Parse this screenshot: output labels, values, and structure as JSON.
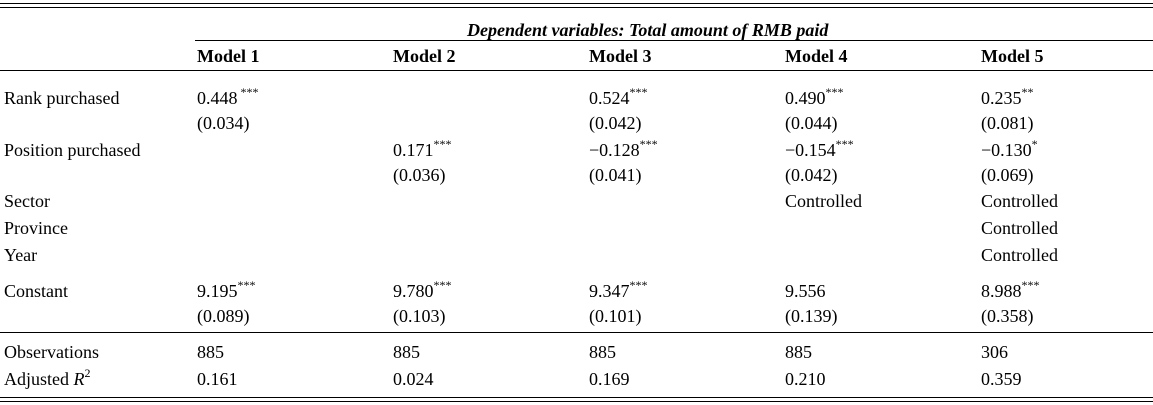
{
  "caption": "Dependent variables: Total amount of RMB paid",
  "models": [
    "Model 1",
    "Model 2",
    "Model 3",
    "Model 4",
    "Model 5"
  ],
  "rows": {
    "rank": {
      "label": "Rank purchased",
      "coef": [
        "0.448",
        "",
        "0.524",
        "0.490",
        "0.235"
      ],
      "stars": [
        " ***",
        "",
        "***",
        "***",
        "**"
      ],
      "se": [
        "(0.034)",
        "",
        "(0.042)",
        "(0.044)",
        "(0.081)"
      ]
    },
    "position": {
      "label": "Position purchased",
      "coef": [
        "",
        "0.171",
        "−0.128",
        "−0.154",
        "−0.130"
      ],
      "stars": [
        "",
        "***",
        "***",
        "***",
        "*"
      ],
      "se": [
        "",
        "(0.036)",
        "(0.041)",
        "(0.042)",
        "(0.069)"
      ]
    },
    "sector": {
      "label": "Sector",
      "values": [
        "",
        "",
        "",
        "Controlled",
        "Controlled"
      ]
    },
    "province": {
      "label": "Province",
      "values": [
        "",
        "",
        "",
        "",
        "Controlled"
      ]
    },
    "year": {
      "label": "Year",
      "values": [
        "",
        "",
        "",
        "",
        "Controlled"
      ]
    },
    "constant": {
      "label": "Constant",
      "coef": [
        "9.195",
        "9.780",
        "9.347",
        "9.556",
        "8.988"
      ],
      "stars": [
        "***",
        "***",
        "***",
        "",
        "***"
      ],
      "se": [
        "(0.089)",
        "(0.103)",
        "(0.101)",
        "(0.139)",
        "(0.358)"
      ]
    },
    "observations": {
      "label": "Observations",
      "values": [
        "885",
        "885",
        "885",
        "885",
        "306"
      ]
    },
    "adj_r2": {
      "label_prefix": "Adjusted ",
      "label_symbol": "R",
      "label_exponent": "2",
      "values": [
        "0.161",
        "0.024",
        "0.169",
        "0.210",
        "0.359"
      ]
    }
  }
}
